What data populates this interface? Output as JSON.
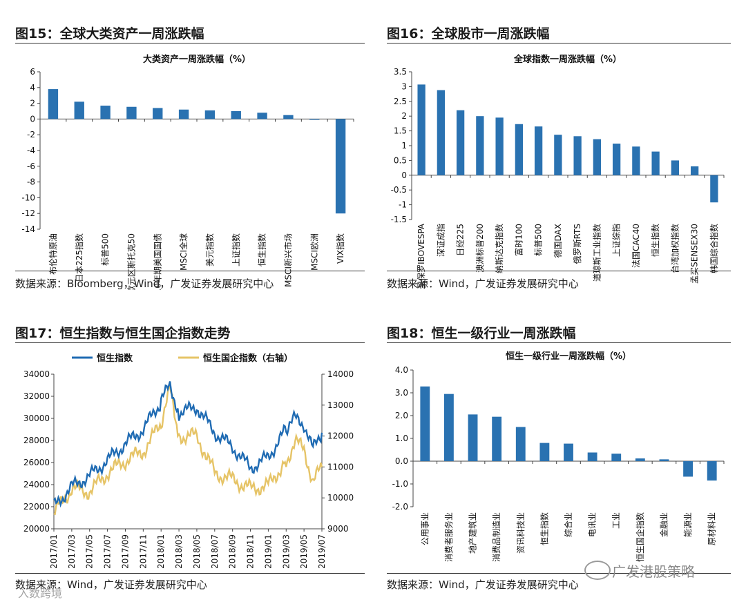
{
  "colors": {
    "bar": "#2a72b1",
    "line_blue": "#1f6bb3",
    "line_gold": "#e6c467",
    "axis": "#444444"
  },
  "panels": [
    {
      "title": "图15：全球大类资产一周涨跌幅",
      "source": "数据来源：Bloomberg，Wind，广发证券发展研究中心"
    },
    {
      "title": "图16：全球股市一周涨跌幅",
      "source": "数据来源：Wind，广发证券发展研究中心"
    },
    {
      "title": "图17：恒生指数与恒生国企指数走势",
      "source": "数据来源：Wind，广发证券发展研究中心"
    },
    {
      "title": "图18：恒生一级行业一周涨跌幅",
      "source": "数据来源：Wind，广发证券发展研究中心"
    }
  ],
  "watermark": {
    "text": "广发港股策略",
    "small_text": "入数跨境"
  },
  "chart_data": [
    {
      "type": "bar",
      "title": "大类资产一周涨跌幅（%）",
      "categories": [
        "布伦特原油",
        "日本225指数",
        "标普500",
        "欧元区斯托克50",
        "10年期美国国债",
        "MSCI全球",
        "美元指数",
        "上证指数",
        "恒生指数",
        "MSCI新兴市场",
        "MSCI欧洲",
        "VIX指数"
      ],
      "values": [
        3.8,
        2.2,
        1.7,
        1.55,
        1.4,
        1.2,
        1.1,
        1.0,
        0.8,
        0.5,
        -0.1,
        -12.0
      ],
      "ylim": [
        -14,
        6
      ],
      "yticks": [
        "6",
        "4",
        "2",
        "0",
        "-2",
        "-4",
        "-6",
        "-8",
        "-10",
        "-12",
        "-14"
      ],
      "grid": false
    },
    {
      "type": "bar",
      "title": "全球指数一周涨跌幅（%）",
      "categories": [
        "圣保罗IBOVESPA",
        "深证成指",
        "日经225",
        "澳洲标普200",
        "纳斯达克指数",
        "富时100",
        "标普500",
        "德国DAX",
        "俄罗斯RTS",
        "道琼斯工业指数",
        "上证综指",
        "法国CAC40",
        "恒生指数",
        "台湾加权指数",
        "孟买SENSEX30",
        "韩国综合指数"
      ],
      "values": [
        3.07,
        2.88,
        2.2,
        2.0,
        1.95,
        1.73,
        1.65,
        1.37,
        1.32,
        1.22,
        1.07,
        0.97,
        0.8,
        0.5,
        0.3,
        -0.92
      ],
      "ylim": [
        -1.5,
        3.5
      ],
      "yticks": [
        "3.5",
        "3",
        "2.5",
        "2",
        "1.5",
        "1",
        "0.5",
        "0",
        "-0.5",
        "-1",
        "-1.5"
      ],
      "grid": false
    },
    {
      "type": "line",
      "series": [
        {
          "name": "恒生指数",
          "axis": "left",
          "x": [
            "2017/01",
            "2017/03",
            "2017/05",
            "2017/07",
            "2017/09",
            "2017/11",
            "2018/01",
            "2018/02",
            "2018/03",
            "2018/05",
            "2018/07",
            "2018/09",
            "2018/11",
            "2019/01",
            "2019/03",
            "2019/04",
            "2019/05",
            "2019/06",
            "2019/07"
          ],
          "values": [
            22000,
            23800,
            24800,
            26200,
            27700,
            29000,
            31500,
            33100,
            30500,
            31000,
            28700,
            27400,
            25500,
            26500,
            29000,
            30000,
            29500,
            27200,
            28700
          ]
        },
        {
          "name": "恒生国企指数（右轴）",
          "axis": "right",
          "x": [
            "2017/01",
            "2017/03",
            "2017/05",
            "2017/07",
            "2017/09",
            "2017/11",
            "2018/01",
            "2018/02",
            "2018/03",
            "2018/05",
            "2018/07",
            "2018/09",
            "2018/11",
            "2019/01",
            "2019/03",
            "2019/04",
            "2019/05",
            "2019/06",
            "2019/07"
          ],
          "values": [
            9500,
            10300,
            10200,
            10800,
            11200,
            11500,
            12400,
            13500,
            12000,
            12000,
            10800,
            10600,
            10300,
            10400,
            11200,
            11800,
            11600,
            10500,
            11000
          ]
        }
      ],
      "x_ticks": [
        "2017/01",
        "2017/03",
        "2017/05",
        "2017/07",
        "2017/09",
        "2017/11",
        "2018/01",
        "2018/03",
        "2018/05",
        "2018/07",
        "2018/09",
        "2018/11",
        "2019/01",
        "2019/03",
        "2019/05",
        "2019/07"
      ],
      "ylim_left": [
        20000,
        34000
      ],
      "yticks_left": [
        "34000",
        "32000",
        "30000",
        "28000",
        "26000",
        "24000",
        "22000",
        "20000"
      ],
      "ylim_right": [
        9000,
        14000
      ],
      "yticks_right": [
        "14000",
        "13000",
        "12000",
        "11000",
        "10000",
        "9000"
      ],
      "legend": "top",
      "grid": false
    },
    {
      "type": "bar",
      "title": "恒生一级行业一周涨跌幅（%）",
      "categories": [
        "公用事业",
        "消费者服务业",
        "地产建筑业",
        "消费品制造业",
        "资讯科技业",
        "恒生指数",
        "综合业",
        "电讯业",
        "工业",
        "恒生国企指数",
        "金融业",
        "能源业",
        "原材料业"
      ],
      "values": [
        3.28,
        2.95,
        2.05,
        1.95,
        1.5,
        0.8,
        0.77,
        0.38,
        0.33,
        0.12,
        0.08,
        -0.68,
        -0.85
      ],
      "ylim": [
        -2.0,
        4.0
      ],
      "yticks": [
        "4.0",
        "3.0",
        "2.0",
        "1.0",
        "0.0",
        "-1.0",
        "-2.0"
      ],
      "grid": false
    }
  ]
}
